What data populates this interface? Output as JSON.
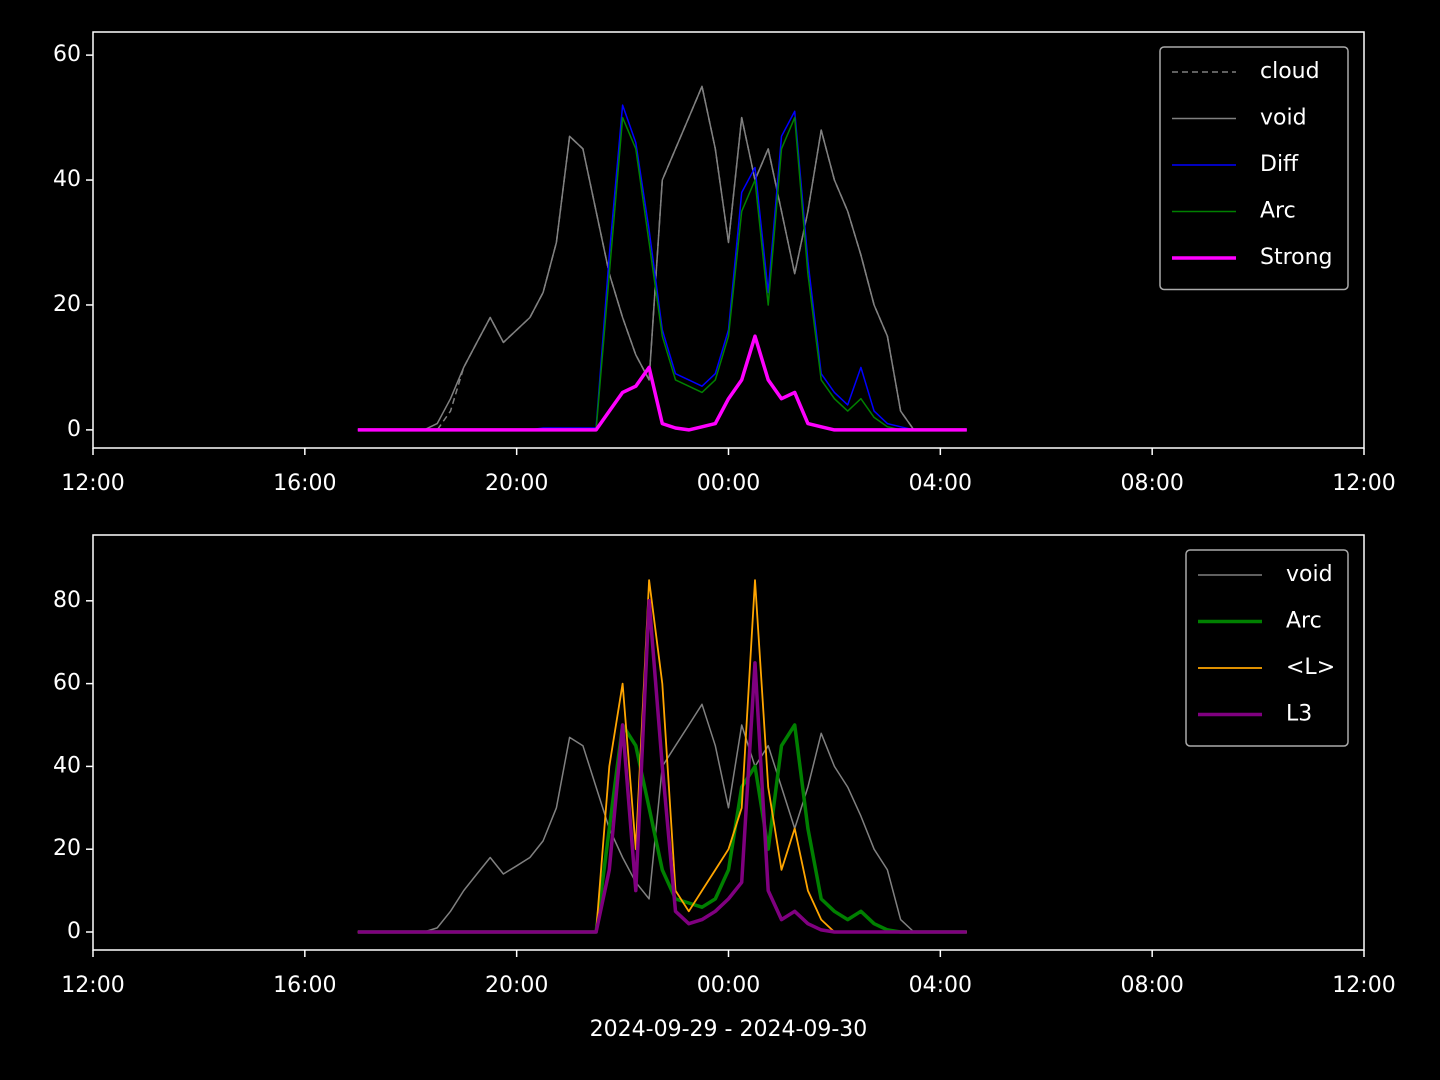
{
  "chart_data": [
    {
      "type": "line",
      "x": [
        17,
        17.25,
        17.5,
        17.75,
        18,
        18.25,
        18.5,
        18.75,
        19,
        19.25,
        19.5,
        19.75,
        20,
        20.25,
        20.5,
        20.75,
        21,
        21.25,
        21.5,
        21.75,
        22,
        22.25,
        22.5,
        22.75,
        23,
        23.25,
        23.5,
        23.75,
        24,
        24.25,
        24.5,
        24.75,
        25,
        25.25,
        25.5,
        25.75,
        26,
        26.25,
        26.5,
        26.75,
        27,
        27.25,
        27.5,
        27.75,
        28,
        28.25,
        28.5
      ],
      "xlim": [
        12,
        36
      ],
      "xticks": [
        {
          "value": 12,
          "label": "12:00"
        },
        {
          "value": 16,
          "label": "16:00"
        },
        {
          "value": 20,
          "label": "20:00"
        },
        {
          "value": 24,
          "label": "00:00"
        },
        {
          "value": 28,
          "label": "04:00"
        },
        {
          "value": 32,
          "label": "08:00"
        },
        {
          "value": 36,
          "label": "12:00"
        }
      ],
      "ylim": [
        -2.9,
        63.7
      ],
      "yticks": [
        0,
        20,
        40,
        60
      ],
      "legend": "upper right",
      "series": [
        {
          "name": "cloud",
          "color": "#808080",
          "linewidth": 1.5,
          "dashed": true,
          "values": [
            0,
            0,
            0,
            0,
            0,
            0,
            0,
            3,
            10,
            14,
            18,
            14,
            16,
            18,
            22,
            30,
            47,
            45,
            35,
            25,
            18,
            12,
            8,
            40,
            45,
            50,
            55,
            45,
            30,
            50,
            40,
            45,
            35,
            25,
            35,
            48,
            40,
            35,
            28,
            20,
            15,
            3,
            0,
            0,
            0,
            0,
            0
          ]
        },
        {
          "name": "void",
          "color": "#808080",
          "linewidth": 1.5,
          "values": [
            0,
            0,
            0,
            0,
            0,
            0,
            1,
            5,
            10,
            14,
            18,
            14,
            16,
            18,
            22,
            30,
            47,
            45,
            35,
            25,
            18,
            12,
            8,
            40,
            45,
            50,
            55,
            45,
            30,
            50,
            40,
            45,
            35,
            25,
            35,
            48,
            40,
            35,
            28,
            20,
            15,
            3,
            0,
            0,
            0,
            0,
            0
          ]
        },
        {
          "name": "Diff",
          "color": "#0000ff",
          "linewidth": 1.5,
          "values": [
            0,
            0,
            0,
            0,
            0,
            0,
            0,
            0,
            0,
            0,
            0,
            0,
            0,
            0,
            0.3,
            0.3,
            0.3,
            0.3,
            0.3,
            28,
            52,
            46,
            32,
            16,
            9,
            8,
            7,
            9,
            16,
            38,
            42,
            22,
            47,
            51,
            27,
            9,
            6,
            4,
            10,
            3,
            1,
            0.5,
            0,
            0,
            0,
            0,
            0
          ]
        },
        {
          "name": "Arc",
          "color": "#008000",
          "linewidth": 1.5,
          "values": [
            0,
            0,
            0,
            0,
            0,
            0,
            0,
            0,
            0,
            0,
            0,
            0,
            0,
            0,
            0,
            0,
            0,
            0,
            0,
            25,
            50,
            45,
            30,
            15,
            8,
            7,
            6,
            8,
            15,
            35,
            40,
            20,
            45,
            50,
            25,
            8,
            5,
            3,
            5,
            2,
            0.5,
            0,
            0,
            0,
            0,
            0,
            0
          ]
        },
        {
          "name": "Strong",
          "color": "#ff00ff",
          "linewidth": 3.5,
          "values": [
            0,
            0,
            0,
            0,
            0,
            0,
            0,
            0,
            0,
            0,
            0,
            0,
            0,
            0,
            0,
            0,
            0,
            0,
            0,
            3,
            6,
            7,
            10,
            1,
            0.3,
            0,
            0.5,
            1,
            5,
            8,
            15,
            8,
            5,
            6,
            1,
            0.5,
            0,
            0,
            0,
            0,
            0,
            0,
            0,
            0,
            0,
            0,
            0
          ]
        }
      ]
    },
    {
      "type": "line",
      "x": [
        17,
        17.25,
        17.5,
        17.75,
        18,
        18.25,
        18.5,
        18.75,
        19,
        19.25,
        19.5,
        19.75,
        20,
        20.25,
        20.5,
        20.75,
        21,
        21.25,
        21.5,
        21.75,
        22,
        22.25,
        22.5,
        22.75,
        23,
        23.25,
        23.5,
        23.75,
        24,
        24.25,
        24.5,
        24.75,
        25,
        25.25,
        25.5,
        25.75,
        26,
        26.25,
        26.5,
        26.75,
        27,
        27.25,
        27.5,
        27.75,
        28,
        28.25,
        28.5
      ],
      "xlim": [
        12,
        36
      ],
      "xticks": [
        {
          "value": 12,
          "label": "12:00"
        },
        {
          "value": 16,
          "label": "16:00"
        },
        {
          "value": 20,
          "label": "20:00"
        },
        {
          "value": 24,
          "label": "00:00"
        },
        {
          "value": 28,
          "label": "04:00"
        },
        {
          "value": 32,
          "label": "08:00"
        },
        {
          "value": 36,
          "label": "12:00"
        }
      ],
      "xlabel": "2024-09-29 - 2024-09-30",
      "ylim": [
        -4.35,
        95.9
      ],
      "yticks": [
        0,
        20,
        40,
        60,
        80
      ],
      "legend": "upper right",
      "series": [
        {
          "name": "void",
          "color": "#808080",
          "linewidth": 1.5,
          "values": [
            0,
            0,
            0,
            0,
            0,
            0,
            1,
            5,
            10,
            14,
            18,
            14,
            16,
            18,
            22,
            30,
            47,
            45,
            35,
            25,
            18,
            12,
            8,
            40,
            45,
            50,
            55,
            45,
            30,
            50,
            40,
            45,
            35,
            25,
            35,
            48,
            40,
            35,
            28,
            20,
            15,
            3,
            0,
            0,
            0,
            0,
            0
          ]
        },
        {
          "name": "Arc",
          "color": "#008000",
          "linewidth": 3.5,
          "values": [
            0,
            0,
            0,
            0,
            0,
            0,
            0,
            0,
            0,
            0,
            0,
            0,
            0,
            0,
            0,
            0,
            0,
            0,
            0,
            25,
            50,
            45,
            30,
            15,
            8,
            7,
            6,
            8,
            15,
            35,
            40,
            20,
            45,
            50,
            25,
            8,
            5,
            3,
            5,
            2,
            0.5,
            0,
            0,
            0,
            0,
            0,
            0
          ]
        },
        {
          "name": "<L>",
          "color": "#ffa500",
          "linewidth": 1.8,
          "values": [
            0,
            0,
            0,
            0,
            0,
            0,
            0,
            0,
            0,
            0,
            0,
            0,
            0,
            0,
            0,
            0,
            0,
            0,
            0,
            40,
            60,
            20,
            85,
            60,
            10,
            5,
            10,
            15,
            20,
            30,
            85,
            35,
            15,
            25,
            10,
            3,
            0,
            0,
            0,
            0,
            0,
            0,
            0,
            0,
            0,
            0,
            0
          ]
        },
        {
          "name": "L3",
          "color": "#800080",
          "linewidth": 3.5,
          "values": [
            0,
            0,
            0,
            0,
            0,
            0,
            0,
            0,
            0,
            0,
            0,
            0,
            0,
            0,
            0,
            0,
            0,
            0,
            0,
            15,
            50,
            10,
            80,
            40,
            5,
            2,
            3,
            5,
            8,
            12,
            65,
            10,
            3,
            5,
            2,
            0.5,
            0,
            0,
            0,
            0,
            0,
            0,
            0,
            0,
            0,
            0,
            0
          ]
        }
      ]
    }
  ]
}
